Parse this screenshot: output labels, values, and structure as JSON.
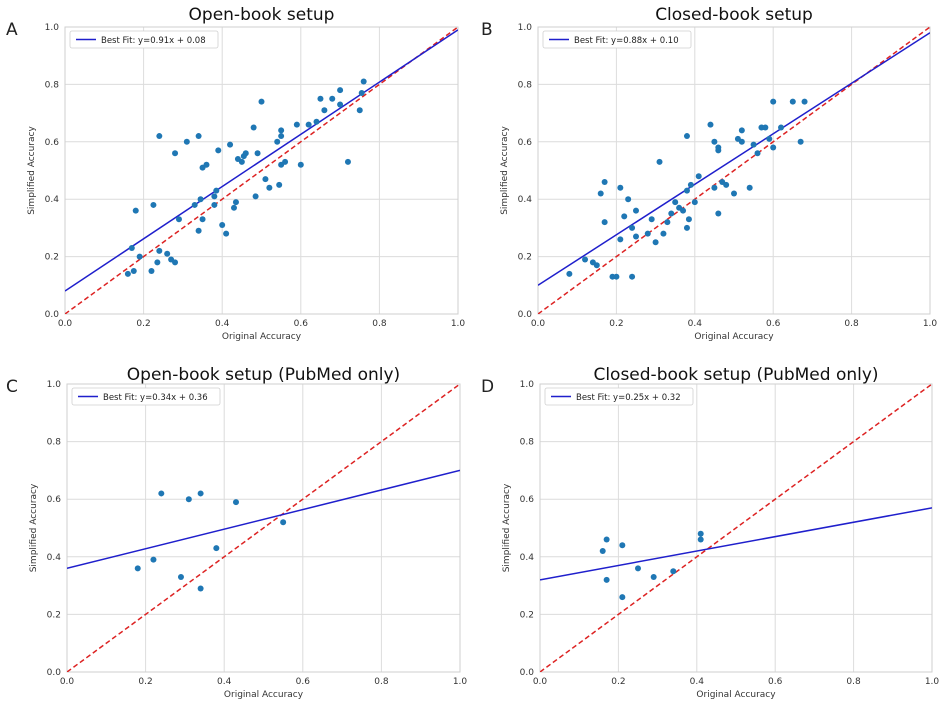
{
  "chart_data": [
    {
      "type": "scatter",
      "panel": "A",
      "title": "Open-book setup",
      "xlabel": "Original Accuracy",
      "ylabel": "Simplified Accuracy",
      "xlim": [
        0,
        1
      ],
      "ylim": [
        0,
        1
      ],
      "xticks": [
        "0.0",
        "0.2",
        "0.4",
        "0.6",
        "0.8",
        "1.0"
      ],
      "yticks": [
        "0.0",
        "0.2",
        "0.4",
        "0.6",
        "0.8",
        "1.0"
      ],
      "grid": true,
      "legend_position": "top-left",
      "fit": {
        "label": "Best Fit: y=0.91x + 0.08",
        "slope": 0.91,
        "intercept": 0.08,
        "color": "#1f1fcc"
      },
      "identity_color": "#dd2222",
      "point_color": "#1f77b4",
      "points": [
        [
          0.16,
          0.14
        ],
        [
          0.17,
          0.23
        ],
        [
          0.175,
          0.15
        ],
        [
          0.18,
          0.36
        ],
        [
          0.19,
          0.2
        ],
        [
          0.22,
          0.15
        ],
        [
          0.225,
          0.38
        ],
        [
          0.235,
          0.18
        ],
        [
          0.24,
          0.62
        ],
        [
          0.24,
          0.22
        ],
        [
          0.26,
          0.21
        ],
        [
          0.27,
          0.19
        ],
        [
          0.28,
          0.18
        ],
        [
          0.28,
          0.56
        ],
        [
          0.29,
          0.33
        ],
        [
          0.31,
          0.6
        ],
        [
          0.33,
          0.38
        ],
        [
          0.34,
          0.62
        ],
        [
          0.34,
          0.29
        ],
        [
          0.345,
          0.4
        ],
        [
          0.35,
          0.51
        ],
        [
          0.35,
          0.33
        ],
        [
          0.36,
          0.52
        ],
        [
          0.38,
          0.38
        ],
        [
          0.38,
          0.41
        ],
        [
          0.385,
          0.43
        ],
        [
          0.39,
          0.57
        ],
        [
          0.4,
          0.31
        ],
        [
          0.41,
          0.28
        ],
        [
          0.42,
          0.59
        ],
        [
          0.43,
          0.37
        ],
        [
          0.435,
          0.39
        ],
        [
          0.44,
          0.54
        ],
        [
          0.45,
          0.53
        ],
        [
          0.455,
          0.55
        ],
        [
          0.46,
          0.56
        ],
        [
          0.48,
          0.65
        ],
        [
          0.485,
          0.41
        ],
        [
          0.49,
          0.56
        ],
        [
          0.5,
          0.74
        ],
        [
          0.51,
          0.47
        ],
        [
          0.52,
          0.44
        ],
        [
          0.54,
          0.6
        ],
        [
          0.545,
          0.45
        ],
        [
          0.55,
          0.64
        ],
        [
          0.55,
          0.62
        ],
        [
          0.55,
          0.52
        ],
        [
          0.56,
          0.53
        ],
        [
          0.59,
          0.66
        ],
        [
          0.6,
          0.52
        ],
        [
          0.62,
          0.66
        ],
        [
          0.64,
          0.67
        ],
        [
          0.65,
          0.75
        ],
        [
          0.66,
          0.71
        ],
        [
          0.68,
          0.75
        ],
        [
          0.7,
          0.73
        ],
        [
          0.7,
          0.78
        ],
        [
          0.72,
          0.53
        ],
        [
          0.75,
          0.71
        ],
        [
          0.755,
          0.77
        ],
        [
          0.76,
          0.81
        ]
      ]
    },
    {
      "type": "scatter",
      "panel": "B",
      "title": "Closed-book setup",
      "xlabel": "Original Accuracy",
      "ylabel": "Simplified Accuracy",
      "xlim": [
        0,
        1
      ],
      "ylim": [
        0,
        1
      ],
      "xticks": [
        "0.0",
        "0.2",
        "0.4",
        "0.6",
        "0.8",
        "1.0"
      ],
      "yticks": [
        "0.0",
        "0.2",
        "0.4",
        "0.6",
        "0.8",
        "1.0"
      ],
      "grid": true,
      "legend_position": "top-left",
      "fit": {
        "label": "Best Fit: y=0.88x + 0.10",
        "slope": 0.88,
        "intercept": 0.1,
        "color": "#1f1fcc"
      },
      "identity_color": "#dd2222",
      "point_color": "#1f77b4",
      "points": [
        [
          0.08,
          0.14
        ],
        [
          0.12,
          0.19
        ],
        [
          0.14,
          0.18
        ],
        [
          0.15,
          0.17
        ],
        [
          0.16,
          0.42
        ],
        [
          0.17,
          0.46
        ],
        [
          0.17,
          0.32
        ],
        [
          0.19,
          0.13
        ],
        [
          0.2,
          0.13
        ],
        [
          0.21,
          0.44
        ],
        [
          0.21,
          0.26
        ],
        [
          0.22,
          0.34
        ],
        [
          0.23,
          0.4
        ],
        [
          0.24,
          0.3
        ],
        [
          0.24,
          0.13
        ],
        [
          0.25,
          0.27
        ],
        [
          0.25,
          0.36
        ],
        [
          0.28,
          0.28
        ],
        [
          0.29,
          0.33
        ],
        [
          0.3,
          0.25
        ],
        [
          0.31,
          0.53
        ],
        [
          0.32,
          0.28
        ],
        [
          0.33,
          0.32
        ],
        [
          0.34,
          0.35
        ],
        [
          0.35,
          0.39
        ],
        [
          0.36,
          0.37
        ],
        [
          0.37,
          0.36
        ],
        [
          0.38,
          0.43
        ],
        [
          0.38,
          0.62
        ],
        [
          0.38,
          0.3
        ],
        [
          0.385,
          0.33
        ],
        [
          0.39,
          0.45
        ],
        [
          0.4,
          0.39
        ],
        [
          0.41,
          0.48
        ],
        [
          0.44,
          0.66
        ],
        [
          0.45,
          0.44
        ],
        [
          0.45,
          0.6
        ],
        [
          0.46,
          0.57
        ],
        [
          0.46,
          0.58
        ],
        [
          0.46,
          0.35
        ],
        [
          0.47,
          0.46
        ],
        [
          0.48,
          0.45
        ],
        [
          0.5,
          0.42
        ],
        [
          0.51,
          0.61
        ],
        [
          0.52,
          0.6
        ],
        [
          0.52,
          0.64
        ],
        [
          0.54,
          0.44
        ],
        [
          0.55,
          0.59
        ],
        [
          0.56,
          0.56
        ],
        [
          0.57,
          0.65
        ],
        [
          0.58,
          0.65
        ],
        [
          0.59,
          0.61
        ],
        [
          0.6,
          0.74
        ],
        [
          0.6,
          0.58
        ],
        [
          0.62,
          0.65
        ],
        [
          0.65,
          0.74
        ],
        [
          0.67,
          0.6
        ],
        [
          0.68,
          0.74
        ]
      ]
    },
    {
      "type": "scatter",
      "panel": "C",
      "title": "Open-book setup (PubMed only)",
      "xlabel": "Original Accuracy",
      "ylabel": "Simplified Accuracy",
      "xlim": [
        0,
        1
      ],
      "ylim": [
        0,
        1
      ],
      "xticks": [
        "0.0",
        "0.2",
        "0.4",
        "0.6",
        "0.8",
        "1.0"
      ],
      "yticks": [
        "0.0",
        "0.2",
        "0.4",
        "0.6",
        "0.8",
        "1.0"
      ],
      "grid": true,
      "legend_position": "top-left",
      "fit": {
        "label": "Best Fit: y=0.34x + 0.36",
        "slope": 0.34,
        "intercept": 0.36,
        "color": "#1f1fcc"
      },
      "identity_color": "#dd2222",
      "point_color": "#1f77b4",
      "points": [
        [
          0.18,
          0.36
        ],
        [
          0.22,
          0.39
        ],
        [
          0.24,
          0.62
        ],
        [
          0.29,
          0.33
        ],
        [
          0.31,
          0.6
        ],
        [
          0.34,
          0.62
        ],
        [
          0.34,
          0.29
        ],
        [
          0.38,
          0.43
        ],
        [
          0.43,
          0.59
        ],
        [
          0.55,
          0.52
        ]
      ]
    },
    {
      "type": "scatter",
      "panel": "D",
      "title": "Closed-book setup (PubMed only)",
      "xlabel": "Original Accuracy",
      "ylabel": "Simplified Accuracy",
      "xlim": [
        0,
        1
      ],
      "ylim": [
        0,
        1
      ],
      "xticks": [
        "0.0",
        "0.2",
        "0.4",
        "0.6",
        "0.8",
        "1.0"
      ],
      "yticks": [
        "0.0",
        "0.2",
        "0.4",
        "0.6",
        "0.8",
        "1.0"
      ],
      "grid": true,
      "legend_position": "top-left",
      "fit": {
        "label": "Best Fit: y=0.25x + 0.32",
        "slope": 0.25,
        "intercept": 0.32,
        "color": "#1f1fcc"
      },
      "identity_color": "#dd2222",
      "point_color": "#1f77b4",
      "points": [
        [
          0.16,
          0.42
        ],
        [
          0.17,
          0.46
        ],
        [
          0.17,
          0.32
        ],
        [
          0.21,
          0.44
        ],
        [
          0.21,
          0.26
        ],
        [
          0.25,
          0.36
        ],
        [
          0.29,
          0.33
        ],
        [
          0.34,
          0.35
        ],
        [
          0.41,
          0.46
        ],
        [
          0.41,
          0.48
        ]
      ]
    }
  ]
}
